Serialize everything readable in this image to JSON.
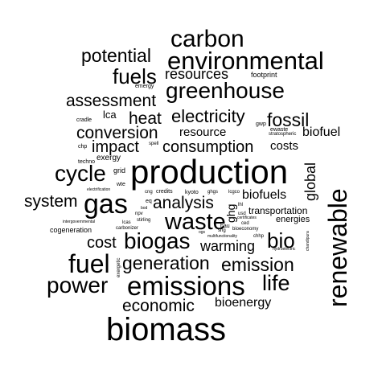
{
  "cloud": {
    "text_color": "#000000",
    "background": "#ffffff",
    "words": [
      {
        "text": "biomass"
      },
      {
        "text": "production"
      },
      {
        "text": "emissions"
      },
      {
        "text": "renewable"
      },
      {
        "text": "environmental"
      },
      {
        "text": "carbon"
      },
      {
        "text": "greenhouse"
      },
      {
        "text": "gas"
      },
      {
        "text": "fuel"
      },
      {
        "text": "waste"
      },
      {
        "text": "power"
      },
      {
        "text": "biogas"
      },
      {
        "text": "cycle"
      },
      {
        "text": "life"
      },
      {
        "text": "bio"
      },
      {
        "text": "fuels"
      },
      {
        "text": "potential"
      },
      {
        "text": "generation"
      },
      {
        "text": "emission"
      },
      {
        "text": "electricity"
      },
      {
        "text": "fossil"
      },
      {
        "text": "economic"
      },
      {
        "text": "assessment"
      },
      {
        "text": "analysis"
      },
      {
        "text": "conversion"
      },
      {
        "text": "impact"
      },
      {
        "text": "consumption"
      },
      {
        "text": "heat"
      },
      {
        "text": "system"
      },
      {
        "text": "cost"
      },
      {
        "text": "warming"
      },
      {
        "text": "resources"
      },
      {
        "text": "global"
      },
      {
        "text": "bioenergy"
      },
      {
        "text": "biofuels"
      },
      {
        "text": "biofuel"
      },
      {
        "text": "resource"
      },
      {
        "text": "costs"
      },
      {
        "text": "transportation"
      },
      {
        "text": "ghg"
      },
      {
        "text": "energies"
      },
      {
        "text": "lca"
      },
      {
        "text": "cogeneration"
      },
      {
        "text": "exergy"
      },
      {
        "text": "footprint"
      },
      {
        "text": "grid"
      },
      {
        "text": "emergy"
      },
      {
        "text": "cradle"
      },
      {
        "text": "chp"
      },
      {
        "text": "spell"
      },
      {
        "text": "techno"
      },
      {
        "text": "wte"
      },
      {
        "text": "electrification"
      },
      {
        "text": "cng"
      },
      {
        "text": "credits"
      },
      {
        "text": "kyoto"
      },
      {
        "text": "ghgs"
      },
      {
        "text": "lcgco"
      },
      {
        "text": "eq"
      },
      {
        "text": "npv"
      },
      {
        "text": "bod"
      },
      {
        "text": "intergovernmental"
      },
      {
        "text": "lcas"
      },
      {
        "text": "carbonizer"
      },
      {
        "text": "stirling"
      },
      {
        "text": "ogs"
      },
      {
        "text": "sng"
      },
      {
        "text": "usd"
      },
      {
        "text": "certificates"
      },
      {
        "text": "ced"
      },
      {
        "text": "bau"
      },
      {
        "text": "bioeconomy"
      },
      {
        "text": "multifunctionality"
      },
      {
        "text": "chhp"
      },
      {
        "text": "hydroelectric"
      },
      {
        "text": "exergetic"
      },
      {
        "text": "chandipura"
      },
      {
        "text": "gwp"
      },
      {
        "text": "ewaste"
      },
      {
        "text": "stratospheric"
      },
      {
        "text": "lhl"
      }
    ]
  }
}
